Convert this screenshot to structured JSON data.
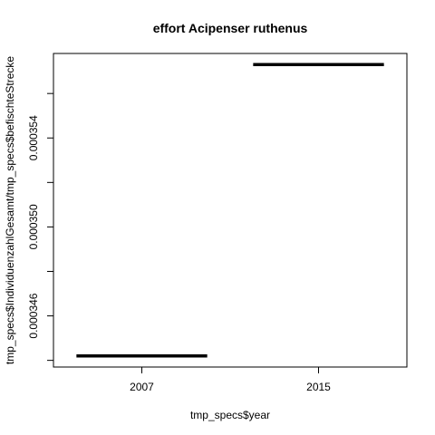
{
  "chart_data": {
    "type": "bar",
    "title": "effort Acipenser ruthenus",
    "xlabel": "tmp_specs$year",
    "ylabel": "tmp_specs$IndividuenzahlGesamt/tmp_specs$befischteStrecke",
    "categories": [
      "2007",
      "2015"
    ],
    "values": [
      0.0003442,
      0.0003573
    ],
    "ylim": [
      0.0003437,
      0.0003578
    ],
    "y_ticks": [
      0.000346,
      0.00035,
      0.000354
    ],
    "y_tick_labels": [
      "0.000346",
      "0.000350",
      "0.000354"
    ],
    "grid": false,
    "style": "boxplot-median-lines"
  }
}
